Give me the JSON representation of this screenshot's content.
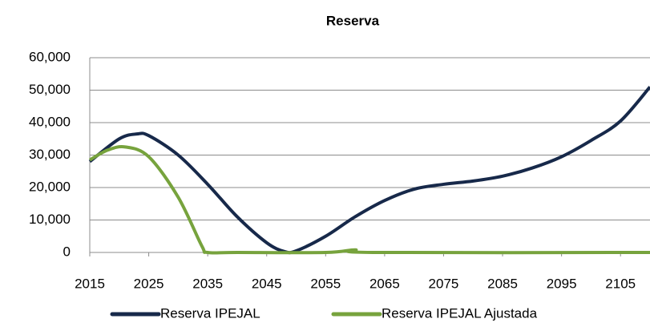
{
  "chart_data": {
    "type": "line",
    "title": "Reserva",
    "xlim": [
      2015,
      2110
    ],
    "xticks": [
      2015,
      2025,
      2035,
      2045,
      2055,
      2065,
      2075,
      2085,
      2095,
      2105
    ],
    "ylim": [
      0,
      60000
    ],
    "yticks": [
      0,
      {
        "value": 10000,
        "label": "10,000"
      },
      {
        "value": 20000,
        "label": "20,000"
      },
      {
        "value": 30000,
        "label": "30,000"
      },
      {
        "value": 40000,
        "label": "40,000"
      },
      {
        "value": 50000,
        "label": "50,000"
      },
      {
        "value": 60000,
        "label": "60,000"
      }
    ],
    "grid": true,
    "legend": "bottom",
    "series": [
      {
        "name": "Reserva IPEJAL",
        "color": "#17294a",
        "x": [
          2015,
          2020,
          2023,
          2025,
          2030,
          2035,
          2040,
          2045,
          2048,
          2050,
          2055,
          2060,
          2065,
          2070,
          2075,
          2080,
          2085,
          2090,
          2095,
          2100,
          2105,
          2110
        ],
        "values": [
          28000,
          35000,
          36500,
          36000,
          30000,
          21000,
          11000,
          3000,
          300,
          500,
          5000,
          11000,
          16000,
          19500,
          21000,
          22000,
          23500,
          26000,
          29500,
          34500,
          40500,
          51000
        ]
      },
      {
        "name": "Reserva IPEJAL Ajustada",
        "color": "#77a33d",
        "x": [
          2015,
          2018,
          2021,
          2025,
          2030,
          2034,
          2035,
          2040,
          2055,
          2060,
          2063,
          2110
        ],
        "values": [
          28500,
          31500,
          32500,
          29500,
          17000,
          2000,
          0,
          0,
          0,
          800,
          0,
          0
        ]
      }
    ]
  }
}
